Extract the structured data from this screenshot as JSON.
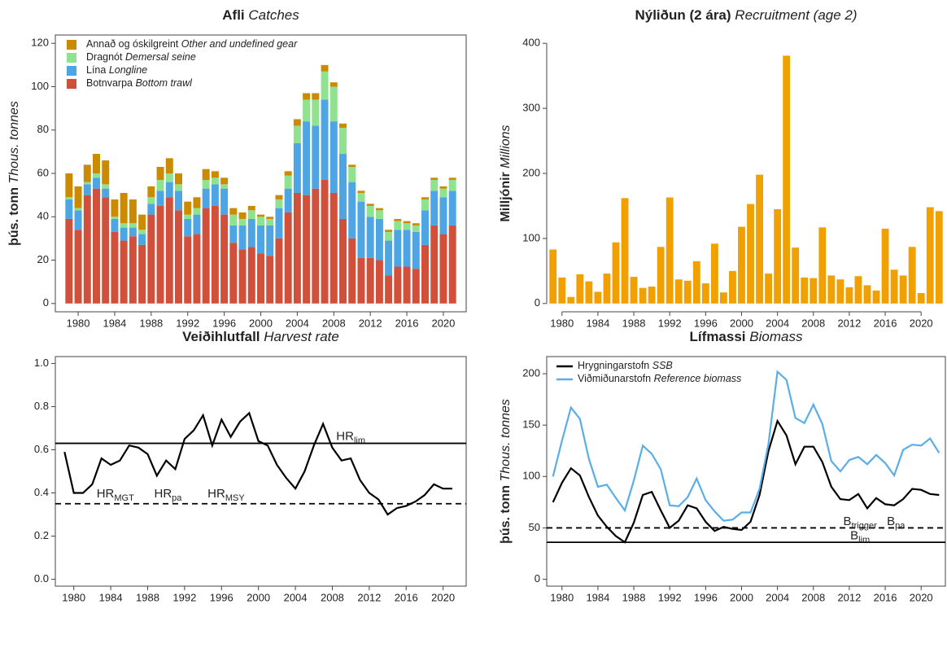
{
  "chart_data": [
    {
      "type": "bar",
      "stacked": true,
      "box": true,
      "title": {
        "main": "Afli",
        "en": "Catches"
      },
      "ylabel": {
        "main": "þús. tonn",
        "en": "Thous. tonnes"
      },
      "x": [
        1979,
        1980,
        1981,
        1982,
        1983,
        1984,
        1985,
        1986,
        1987,
        1988,
        1989,
        1990,
        1991,
        1992,
        1993,
        1994,
        1995,
        1996,
        1997,
        1998,
        1999,
        2000,
        2001,
        2002,
        2003,
        2004,
        2005,
        2006,
        2007,
        2008,
        2009,
        2010,
        2011,
        2012,
        2013,
        2014,
        2015,
        2016,
        2017,
        2018,
        2019,
        2020,
        2021
      ],
      "xlim": [
        1977.5,
        2022.5
      ],
      "xticks": [
        1980,
        1984,
        1988,
        1992,
        1996,
        2000,
        2004,
        2008,
        2012,
        2016,
        2020
      ],
      "ylim": [
        0,
        120
      ],
      "yticks": [
        0,
        20,
        40,
        60,
        80,
        100,
        120
      ],
      "legend": "upper left",
      "series": [
        {
          "name": {
            "main": "Botnvarpa",
            "en": "Bottom trawl"
          },
          "color": "#d1503b",
          "values": [
            39,
            34,
            50,
            53,
            49,
            33,
            29,
            31,
            27,
            41,
            45,
            49,
            43,
            31,
            32,
            44,
            45,
            41,
            28,
            25,
            26,
            23,
            22,
            30,
            42,
            51,
            50,
            53,
            57,
            51,
            39,
            30,
            21,
            21,
            20,
            13,
            17,
            17,
            16,
            27,
            36,
            32,
            36
          ]
        },
        {
          "name": {
            "main": "Lína",
            "en": "Longline"
          },
          "color": "#4ea5e3",
          "values": [
            9,
            9,
            5,
            5,
            4,
            6,
            6,
            4,
            5,
            5,
            7,
            7,
            9,
            8,
            9,
            9,
            10,
            12,
            8,
            11,
            13,
            13,
            14,
            14,
            11,
            23,
            34,
            29,
            37,
            33,
            30,
            26,
            26,
            19,
            19,
            16,
            17,
            17,
            17,
            16,
            16,
            17,
            16
          ]
        },
        {
          "name": {
            "main": "Dragnót",
            "en": "Demersal seine"
          },
          "color": "#8fe38f",
          "values": [
            1,
            1,
            1,
            2,
            2,
            1,
            2,
            2,
            2,
            3,
            5,
            4,
            3,
            2,
            3,
            4,
            3,
            2,
            5,
            3,
            4,
            4,
            3,
            4,
            6,
            8,
            10,
            12,
            13,
            16,
            12,
            7,
            4,
            5,
            4,
            4,
            4,
            3,
            3,
            5,
            5,
            4,
            5
          ]
        },
        {
          "name": {
            "main": "Annað og óskilgreint",
            "en": "Other and undefined gear"
          },
          "color": "#cc8a00",
          "values": [
            11,
            10,
            8,
            9,
            11,
            8,
            14,
            11,
            7,
            5,
            6,
            7,
            5,
            6,
            5,
            5,
            3,
            3,
            3,
            3,
            2,
            1,
            1,
            2,
            2,
            3,
            3,
            3,
            3,
            2,
            2,
            1,
            1,
            1,
            1,
            1,
            1,
            1,
            1,
            1,
            1,
            1,
            1
          ]
        }
      ]
    },
    {
      "type": "bar",
      "box": false,
      "title": {
        "main": "Nýliðun (2 ára)",
        "en": "Recruitment (age 2)"
      },
      "ylabel": {
        "main": "Milljónir",
        "en": "Millions"
      },
      "x": [
        1979,
        1980,
        1981,
        1982,
        1983,
        1984,
        1985,
        1986,
        1987,
        1988,
        1989,
        1990,
        1991,
        1992,
        1993,
        1994,
        1995,
        1996,
        1997,
        1998,
        1999,
        2000,
        2001,
        2002,
        2003,
        2004,
        2005,
        2006,
        2007,
        2008,
        2009,
        2010,
        2011,
        2012,
        2013,
        2014,
        2015,
        2016,
        2017,
        2018,
        2019,
        2020,
        2021,
        2022
      ],
      "xlim": [
        1978.3,
        2022.7
      ],
      "xticks": [
        1980,
        1984,
        1988,
        1992,
        1996,
        2000,
        2004,
        2008,
        2012,
        2016,
        2020
      ],
      "ylim": [
        0,
        400
      ],
      "yticks": [
        0,
        100,
        200,
        300,
        400
      ],
      "color": "#f0a000",
      "values": [
        83,
        40,
        10,
        45,
        34,
        18,
        46,
        94,
        162,
        41,
        24,
        26,
        87,
        163,
        37,
        35,
        65,
        31,
        92,
        17,
        50,
        118,
        153,
        198,
        46,
        145,
        381,
        86,
        40,
        39,
        117,
        43,
        37,
        25,
        42,
        28,
        20,
        115,
        52,
        43,
        87,
        16,
        148,
        142
      ]
    },
    {
      "type": "line",
      "box": true,
      "title": {
        "main": "Veiðihlutfall",
        "en": "Harvest rate"
      },
      "x": [
        1979,
        1980,
        1981,
        1982,
        1983,
        1984,
        1985,
        1986,
        1987,
        1988,
        1989,
        1990,
        1991,
        1992,
        1993,
        1994,
        1995,
        1996,
        1997,
        1998,
        1999,
        2000,
        2001,
        2002,
        2003,
        2004,
        2005,
        2006,
        2007,
        2008,
        2009,
        2010,
        2011,
        2012,
        2013,
        2014,
        2015,
        2016,
        2017,
        2018,
        2019,
        2020,
        2021
      ],
      "xlim": [
        1978,
        2022.5
      ],
      "xticks": [
        1980,
        1984,
        1988,
        1992,
        1996,
        2000,
        2004,
        2008,
        2012,
        2016,
        2020
      ],
      "ylim": [
        0,
        1
      ],
      "yticks": [
        {
          "value": 0,
          "label": "0.0"
        },
        0.2,
        0.4,
        0.6,
        0.8,
        {
          "value": 1,
          "label": "1.0"
        }
      ],
      "series": [
        {
          "color": "#000000",
          "values": [
            0.59,
            0.4,
            0.4,
            0.44,
            0.56,
            0.53,
            0.55,
            0.62,
            0.61,
            0.58,
            0.48,
            0.55,
            0.51,
            0.65,
            0.69,
            0.76,
            0.62,
            0.74,
            0.66,
            0.73,
            0.77,
            0.64,
            0.62,
            0.53,
            0.47,
            0.42,
            0.5,
            0.62,
            0.72,
            0.61,
            0.55,
            0.56,
            0.46,
            0.4,
            0.37,
            0.3,
            0.33,
            0.34,
            0.36,
            0.39,
            0.44,
            0.42,
            0.42
          ]
        }
      ],
      "hlines": [
        {
          "value": 0.63,
          "style": "solid"
        },
        {
          "value": 0.35,
          "style": "dashed"
        }
      ],
      "annotations": [
        {
          "text": "HR",
          "sub": "lim"
        },
        {
          "text": "HR",
          "sub": "MGT"
        },
        {
          "text": "HR",
          "sub": "pa"
        },
        {
          "text": "HR",
          "sub": "MSY"
        }
      ]
    },
    {
      "type": "line",
      "box": true,
      "title": {
        "main": "Lífmassi",
        "en": "Biomass"
      },
      "ylabel": {
        "main": "þús. tonn",
        "en": "Thous. tonnes"
      },
      "x": [
        1979,
        1980,
        1981,
        1982,
        1983,
        1984,
        1985,
        1986,
        1987,
        1988,
        1989,
        1990,
        1991,
        1992,
        1993,
        1994,
        1995,
        1996,
        1997,
        1998,
        1999,
        2000,
        2001,
        2002,
        2003,
        2004,
        2005,
        2006,
        2007,
        2008,
        2009,
        2010,
        2011,
        2012,
        2013,
        2014,
        2015,
        2016,
        2017,
        2018,
        2019,
        2020,
        2021,
        2022
      ],
      "xlim": [
        1978.3,
        2022.7
      ],
      "xticks": [
        1980,
        1984,
        1988,
        1992,
        1996,
        2000,
        2004,
        2008,
        2012,
        2016,
        2020
      ],
      "ylim": [
        0,
        210
      ],
      "yticks": [
        0,
        50,
        100,
        150,
        200
      ],
      "legend": "upper left",
      "series": [
        {
          "name": {
            "main": "Hrygningarstofn",
            "en": "SSB"
          },
          "color": "#000000",
          "values": [
            75,
            94,
            108,
            101,
            80,
            62,
            51,
            42,
            36,
            55,
            82,
            85,
            67,
            50,
            57,
            72,
            69,
            56,
            47,
            51,
            49,
            48,
            56,
            82,
            125,
            154,
            140,
            112,
            129,
            129,
            114,
            90,
            78,
            77,
            83,
            69,
            79,
            73,
            72,
            78,
            88,
            87,
            83,
            82
          ]
        },
        {
          "name": {
            "main": "Viðmiðunarstofn",
            "en": "Reference biomass"
          },
          "color": "#5aaee8",
          "values": [
            100,
            135,
            167,
            156,
            117,
            90,
            92,
            79,
            67,
            96,
            130,
            122,
            107,
            72,
            71,
            80,
            98,
            77,
            66,
            57,
            58,
            65,
            65,
            88,
            132,
            202,
            194,
            157,
            152,
            170,
            151,
            115,
            105,
            116,
            119,
            112,
            121,
            113,
            101,
            126,
            131,
            130,
            137,
            123
          ]
        }
      ],
      "hlines": [
        {
          "value": 50,
          "style": "dashed"
        },
        {
          "value": 36,
          "style": "solid"
        }
      ],
      "annotations": [
        {
          "text": "B",
          "sub": "trigger"
        },
        {
          "text": "B",
          "sub": "pa"
        },
        {
          "text": "B",
          "sub": "lim"
        }
      ]
    }
  ]
}
